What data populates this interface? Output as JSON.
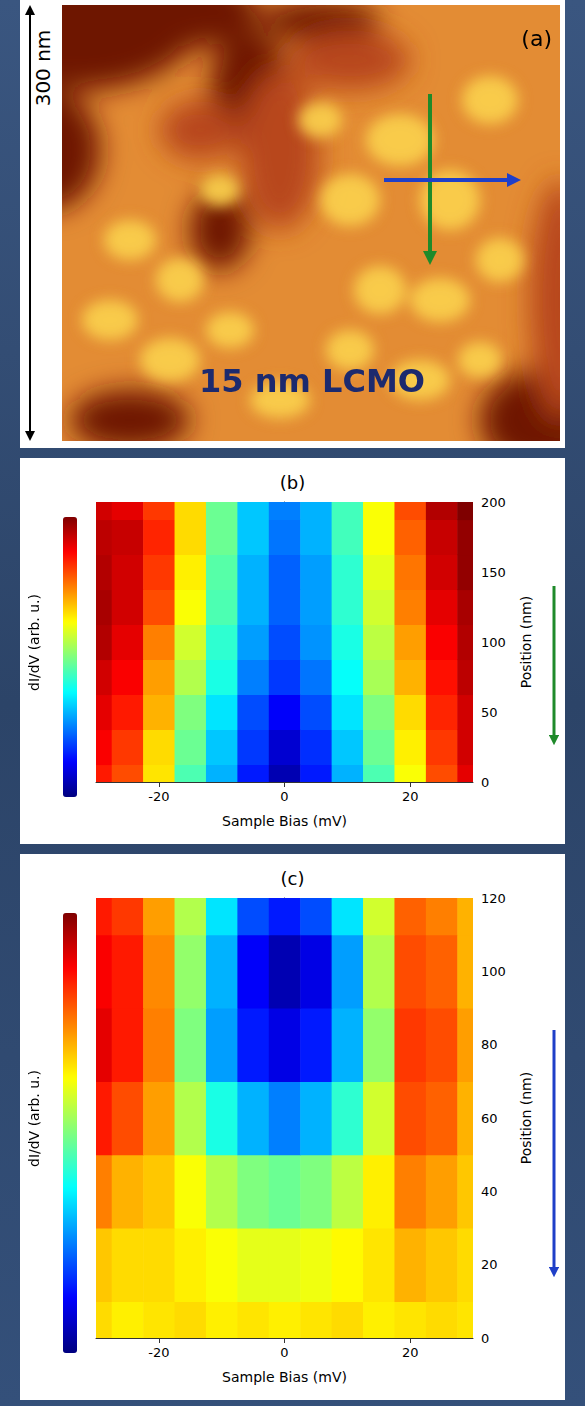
{
  "image": {
    "label": "(a)",
    "scale_bar": "300 nm",
    "annotation": "15 nm LCMO"
  },
  "chart_data": [
    {
      "type": "heatmap",
      "title": "(b)",
      "xlabel": "Sample Bias (mV)",
      "ylabel": "Position (nm)",
      "zlabel": "dI/dV (arb. u.)",
      "x": [
        -30,
        -25,
        -20,
        -15,
        -10,
        -5,
        0,
        5,
        10,
        15,
        20,
        25,
        30
      ],
      "y": [
        0,
        25,
        50,
        75,
        100,
        125,
        150,
        175,
        200
      ],
      "values": [
        [
          0.85,
          0.8,
          0.65,
          0.45,
          0.3,
          0.15,
          0.05,
          0.15,
          0.3,
          0.45,
          0.62,
          0.8,
          0.9
        ],
        [
          0.88,
          0.82,
          0.66,
          0.48,
          0.32,
          0.18,
          0.08,
          0.17,
          0.32,
          0.48,
          0.64,
          0.82,
          0.92
        ],
        [
          0.9,
          0.85,
          0.7,
          0.5,
          0.35,
          0.2,
          0.12,
          0.2,
          0.35,
          0.5,
          0.66,
          0.84,
          0.92
        ],
        [
          0.92,
          0.88,
          0.72,
          0.55,
          0.4,
          0.25,
          0.18,
          0.24,
          0.38,
          0.54,
          0.7,
          0.86,
          0.94
        ],
        [
          0.95,
          0.9,
          0.75,
          0.58,
          0.42,
          0.28,
          0.2,
          0.27,
          0.4,
          0.56,
          0.72,
          0.88,
          0.95
        ],
        [
          0.96,
          0.92,
          0.8,
          0.62,
          0.45,
          0.3,
          0.22,
          0.28,
          0.42,
          0.58,
          0.75,
          0.9,
          0.96
        ],
        [
          0.95,
          0.92,
          0.82,
          0.64,
          0.46,
          0.3,
          0.22,
          0.28,
          0.42,
          0.6,
          0.76,
          0.92,
          0.98
        ],
        [
          0.94,
          0.93,
          0.84,
          0.66,
          0.48,
          0.32,
          0.24,
          0.3,
          0.44,
          0.62,
          0.78,
          0.93,
          0.98
        ],
        [
          0.92,
          0.9,
          0.82,
          0.66,
          0.48,
          0.32,
          0.25,
          0.3,
          0.44,
          0.62,
          0.8,
          0.95,
          1.0
        ]
      ],
      "xlim": [
        -30,
        30
      ],
      "xticks": [
        -20,
        0,
        20
      ],
      "ylim": [
        0,
        200
      ],
      "yticks": [
        0,
        50,
        100,
        150,
        200
      ],
      "zlim": [
        0,
        1
      ],
      "grid": false
    },
    {
      "type": "heatmap",
      "title": "(c)",
      "xlabel": "Sample Bias (mV)",
      "ylabel": "Position (nm)",
      "zlabel": "dI/dV (arb. u.)",
      "x": [
        -30,
        -25,
        -20,
        -15,
        -10,
        -5,
        0,
        5,
        10,
        15,
        20,
        25,
        30
      ],
      "y": [
        0,
        20,
        40,
        60,
        80,
        100,
        120
      ],
      "values": [
        [
          0.66,
          0.64,
          0.65,
          0.66,
          0.64,
          0.65,
          0.64,
          0.65,
          0.66,
          0.64,
          0.65,
          0.66,
          0.65
        ],
        [
          0.68,
          0.66,
          0.66,
          0.64,
          0.62,
          0.6,
          0.6,
          0.61,
          0.63,
          0.65,
          0.7,
          0.68,
          0.66
        ],
        [
          0.75,
          0.7,
          0.68,
          0.62,
          0.55,
          0.5,
          0.48,
          0.5,
          0.56,
          0.64,
          0.75,
          0.72,
          0.68
        ],
        [
          0.85,
          0.8,
          0.72,
          0.55,
          0.4,
          0.3,
          0.25,
          0.3,
          0.42,
          0.58,
          0.8,
          0.78,
          0.7
        ],
        [
          0.9,
          0.85,
          0.75,
          0.5,
          0.28,
          0.15,
          0.1,
          0.15,
          0.3,
          0.52,
          0.82,
          0.8,
          0.72
        ],
        [
          0.88,
          0.85,
          0.74,
          0.52,
          0.3,
          0.12,
          0.05,
          0.1,
          0.28,
          0.55,
          0.8,
          0.78,
          0.7
        ],
        [
          0.85,
          0.82,
          0.72,
          0.55,
          0.35,
          0.2,
          0.15,
          0.2,
          0.35,
          0.58,
          0.78,
          0.75,
          0.7
        ]
      ],
      "xlim": [
        -30,
        30
      ],
      "xticks": [
        -20,
        0,
        20
      ],
      "ylim": [
        0,
        120
      ],
      "yticks": [
        0,
        20,
        40,
        60,
        80,
        100,
        120
      ],
      "zlim": [
        0,
        1
      ],
      "grid": false
    }
  ]
}
